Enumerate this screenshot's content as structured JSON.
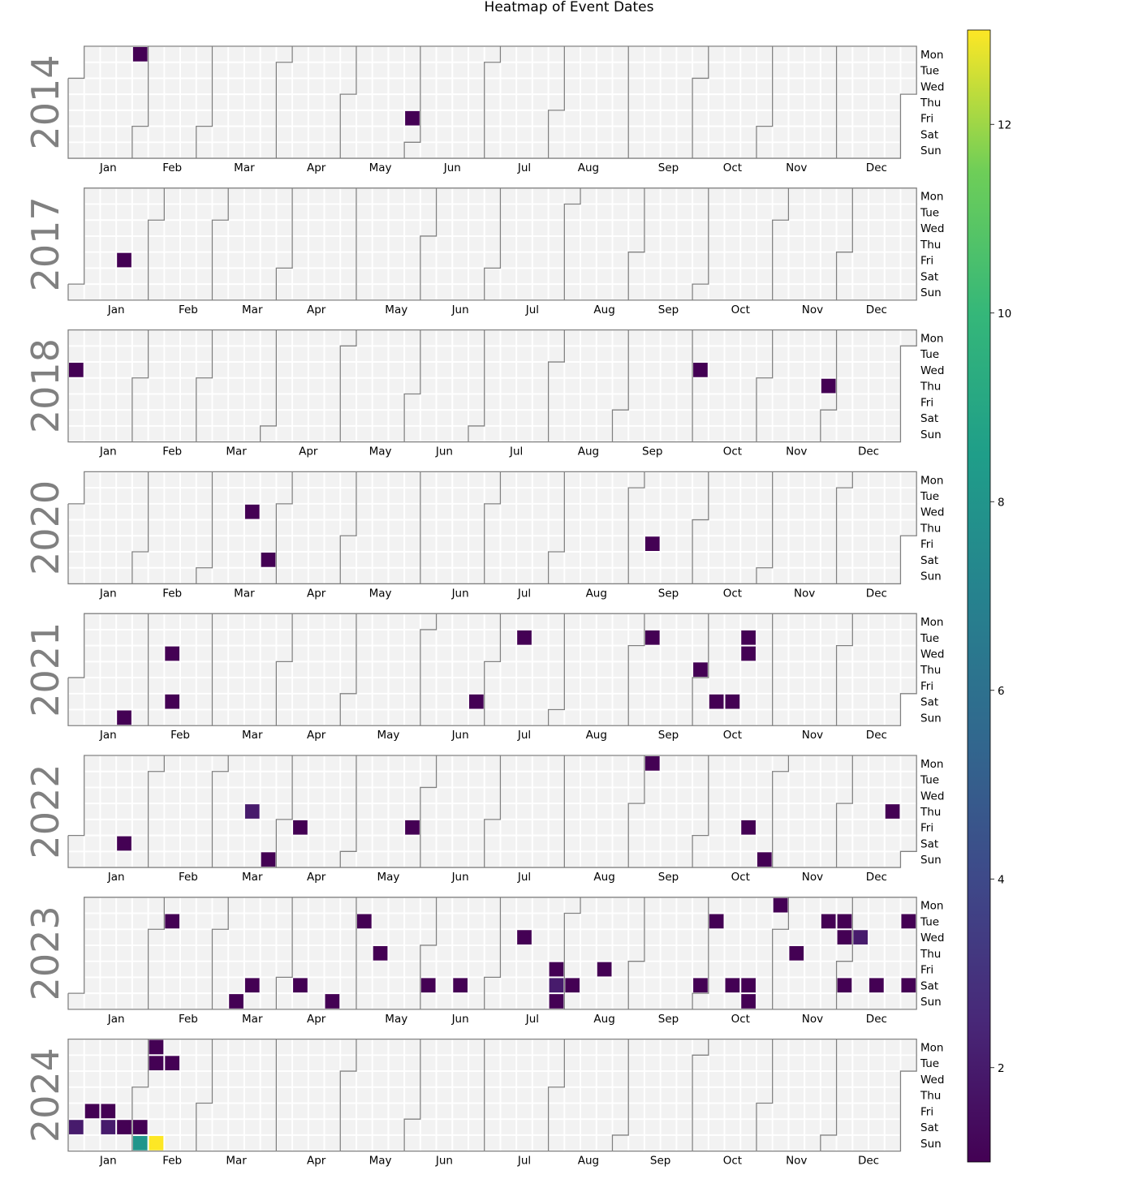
{
  "chart_data": {
    "type": "heatmap",
    "title": "Heatmap of Event Dates",
    "weekdays": [
      "Mon",
      "Tue",
      "Wed",
      "Thu",
      "Fri",
      "Sat",
      "Sun"
    ],
    "months": [
      "Jan",
      "Feb",
      "Mar",
      "Apr",
      "May",
      "Jun",
      "Jul",
      "Aug",
      "Sep",
      "Oct",
      "Nov",
      "Dec"
    ],
    "colorbar": {
      "min": 1,
      "max": 13,
      "ticks": [
        2,
        4,
        6,
        8,
        10,
        12
      ],
      "colormap": "viridis"
    },
    "empty_color": "#f2f2f2",
    "years": [
      {
        "year": "2014",
        "events": [
          {
            "date": "2014-01-27",
            "count": 1
          },
          {
            "date": "2014-05-30",
            "count": 1
          }
        ]
      },
      {
        "year": "2017",
        "events": [
          {
            "date": "2017-01-20",
            "count": 1
          }
        ]
      },
      {
        "year": "2018",
        "events": [
          {
            "date": "2018-01-03",
            "count": 1
          },
          {
            "date": "2018-10-03",
            "count": 1
          },
          {
            "date": "2018-11-29",
            "count": 1
          }
        ]
      },
      {
        "year": "2020",
        "events": [
          {
            "date": "2020-03-18",
            "count": 1
          },
          {
            "date": "2020-03-28",
            "count": 1
          },
          {
            "date": "2020-09-11",
            "count": 1
          }
        ]
      },
      {
        "year": "2021",
        "events": [
          {
            "date": "2021-01-24",
            "count": 1
          },
          {
            "date": "2021-02-10",
            "count": 1
          },
          {
            "date": "2021-02-13",
            "count": 1
          },
          {
            "date": "2021-06-26",
            "count": 1
          },
          {
            "date": "2021-07-13",
            "count": 1
          },
          {
            "date": "2021-09-07",
            "count": 1
          },
          {
            "date": "2021-09-30",
            "count": 1
          },
          {
            "date": "2021-10-09",
            "count": 1
          },
          {
            "date": "2021-10-16",
            "count": 1
          },
          {
            "date": "2021-10-19",
            "count": 1
          },
          {
            "date": "2021-10-20",
            "count": 1
          }
        ]
      },
      {
        "year": "2022",
        "events": [
          {
            "date": "2022-01-22",
            "count": 1
          },
          {
            "date": "2022-03-17",
            "count": 2
          },
          {
            "date": "2022-03-27",
            "count": 1
          },
          {
            "date": "2022-04-08",
            "count": 1
          },
          {
            "date": "2022-05-27",
            "count": 1
          },
          {
            "date": "2022-09-05",
            "count": 1
          },
          {
            "date": "2022-10-21",
            "count": 1
          },
          {
            "date": "2022-10-30",
            "count": 1
          },
          {
            "date": "2022-12-22",
            "count": 1
          }
        ]
      },
      {
        "year": "2023",
        "events": [
          {
            "date": "2023-02-07",
            "count": 1
          },
          {
            "date": "2023-03-12",
            "count": 1
          },
          {
            "date": "2023-03-18",
            "count": 1
          },
          {
            "date": "2023-04-08",
            "count": 1
          },
          {
            "date": "2023-04-23",
            "count": 1
          },
          {
            "date": "2023-05-02",
            "count": 1
          },
          {
            "date": "2023-05-11",
            "count": 1
          },
          {
            "date": "2023-06-03",
            "count": 1
          },
          {
            "date": "2023-06-17",
            "count": 1
          },
          {
            "date": "2023-07-12",
            "count": 1
          },
          {
            "date": "2023-07-28",
            "count": 1
          },
          {
            "date": "2023-07-29",
            "count": 2
          },
          {
            "date": "2023-07-30",
            "count": 1
          },
          {
            "date": "2023-08-05",
            "count": 1
          },
          {
            "date": "2023-08-18",
            "count": 1
          },
          {
            "date": "2023-09-30",
            "count": 1
          },
          {
            "date": "2023-10-03",
            "count": 1
          },
          {
            "date": "2023-10-14",
            "count": 1
          },
          {
            "date": "2023-10-21",
            "count": 1
          },
          {
            "date": "2023-10-22",
            "count": 1
          },
          {
            "date": "2023-10-30",
            "count": 1
          },
          {
            "date": "2023-11-09",
            "count": 1
          },
          {
            "date": "2023-11-21",
            "count": 1
          },
          {
            "date": "2023-11-28",
            "count": 1
          },
          {
            "date": "2023-11-29",
            "count": 1
          },
          {
            "date": "2023-12-02",
            "count": 1
          },
          {
            "date": "2023-12-06",
            "count": 2
          },
          {
            "date": "2023-12-16",
            "count": 1
          },
          {
            "date": "2023-12-26",
            "count": 1
          },
          {
            "date": "2023-12-30",
            "count": 1
          }
        ]
      },
      {
        "year": "2024",
        "events": [
          {
            "date": "2024-01-06",
            "count": 2
          },
          {
            "date": "2024-01-12",
            "count": 1
          },
          {
            "date": "2024-01-19",
            "count": 1
          },
          {
            "date": "2024-01-20",
            "count": 2
          },
          {
            "date": "2024-01-27",
            "count": 1
          },
          {
            "date": "2024-02-03",
            "count": 1
          },
          {
            "date": "2024-02-04",
            "count": 8
          },
          {
            "date": "2024-02-05",
            "count": 1
          },
          {
            "date": "2024-02-06",
            "count": 1
          },
          {
            "date": "2024-02-11",
            "count": 13
          },
          {
            "date": "2024-02-13",
            "count": 1
          }
        ]
      }
    ]
  }
}
